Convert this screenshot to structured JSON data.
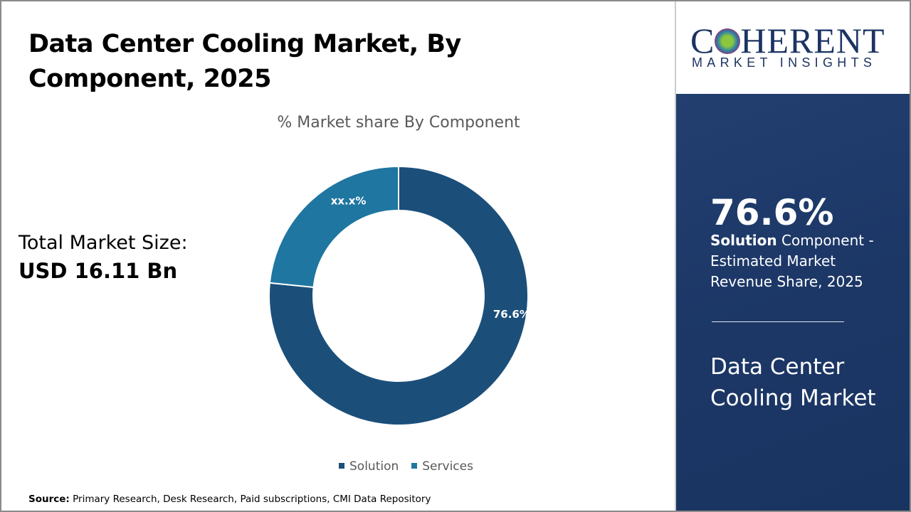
{
  "title": "Data Center Cooling Market, By Component, 2025",
  "total_market": {
    "label": "Total Market Size:",
    "value": "USD 16.11 Bn"
  },
  "chart_data": {
    "type": "pie",
    "subtype": "donut",
    "title": "% Market share By Component",
    "categories": [
      "Solution",
      "Services"
    ],
    "values": [
      76.6,
      23.4
    ],
    "data_labels": [
      "76.6%",
      "xx.x%"
    ],
    "colors": [
      "#1b4f7a",
      "#1f76a1"
    ],
    "legend_position": "bottom"
  },
  "source": {
    "label": "Source:",
    "text": "Primary Research, Desk Research, Paid subscriptions, CMI Data Repository"
  },
  "logo": {
    "main": "COHERENT",
    "sub": "MARKET INSIGHTS"
  },
  "sidebar": {
    "highlight_value": "76.6%",
    "highlight_bold": "Solution",
    "highlight_text": " Component - Estimated Market Revenue Share, 2025",
    "market_name": "Data Center Cooling Market"
  }
}
